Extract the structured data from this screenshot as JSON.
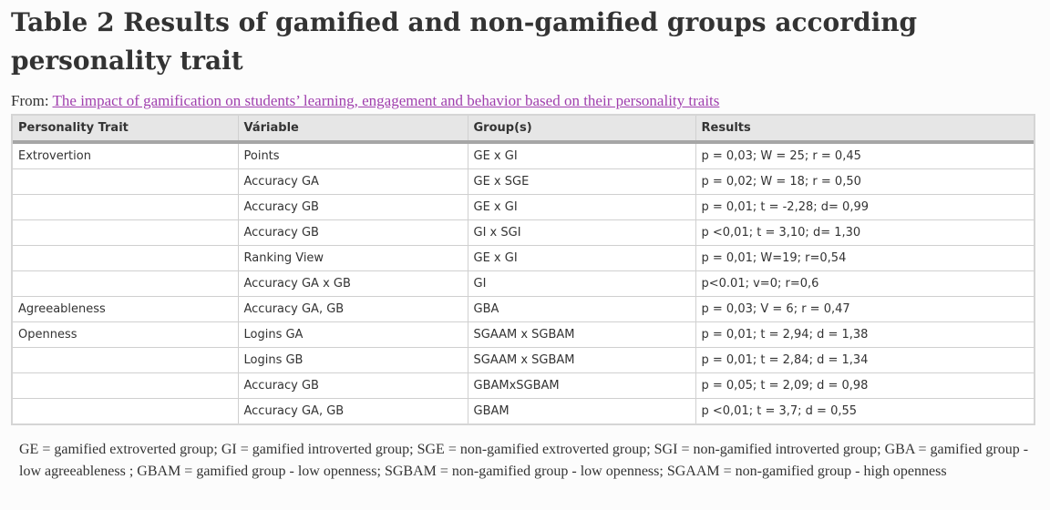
{
  "title": "Table 2 Results of gamified and non-gamified groups according personality trait",
  "from": {
    "prefix": "From: ",
    "link_text": "The impact of gamification on students’ learning, engagement and behavior based on their personality traits"
  },
  "colors": {
    "link": "#a03fae",
    "header_bg": "#e6e6e6",
    "header_rule": "#a6a6a6"
  },
  "table": {
    "headers": [
      "Personality Trait",
      "Váriable",
      "Group(s)",
      "Results"
    ],
    "rows": [
      [
        "Extrovertion",
        "Points",
        "GE x GI",
        "p = 0,03; W = 25; r = 0,45"
      ],
      [
        "",
        "Accuracy GA",
        "GE x SGE",
        "p = 0,02; W = 18; r = 0,50"
      ],
      [
        "",
        "Accuracy GB",
        "GE x GI",
        "p = 0,01; t = -2,28; d= 0,99"
      ],
      [
        "",
        "Accuracy GB",
        "GI x SGI",
        "p <0,01; t = 3,10; d= 1,30"
      ],
      [
        "",
        "Ranking View",
        "GE x GI",
        "p = 0,01; W=19; r=0,54"
      ],
      [
        "",
        "Accuracy GA x GB",
        "GI",
        "p<0.01; v=0; r=0,6"
      ],
      [
        "Agreeableness",
        "Accuracy GA, GB",
        "GBA",
        "p = 0,03; V = 6; r = 0,47"
      ],
      [
        "Openness",
        "Logins GA",
        "SGAAM x SGBAM",
        "p = 0,01; t = 2,94; d = 1,38"
      ],
      [
        "",
        "Logins GB",
        "SGAAM x SGBAM",
        "p = 0,01; t = 2,84; d = 1,34"
      ],
      [
        "",
        "Accuracy GB",
        "GBAMxSGBAM",
        "p = 0,05; t = 2,09; d = 0,98"
      ],
      [
        "",
        "Accuracy GA, GB",
        "GBAM",
        "p <0,01; t = 3,7; d = 0,55"
      ]
    ]
  },
  "footnote": "GE = gamified extroverted group; GI = gamified introverted group; SGE = non-gamified extroverted group; SGI = non-gamified introverted group; GBA = gamified group - low agreeableness ; GBAM = gamified group - low openness; SGBAM = non-gamified group - low openness; SGAAM = non-gamified group - high openness"
}
